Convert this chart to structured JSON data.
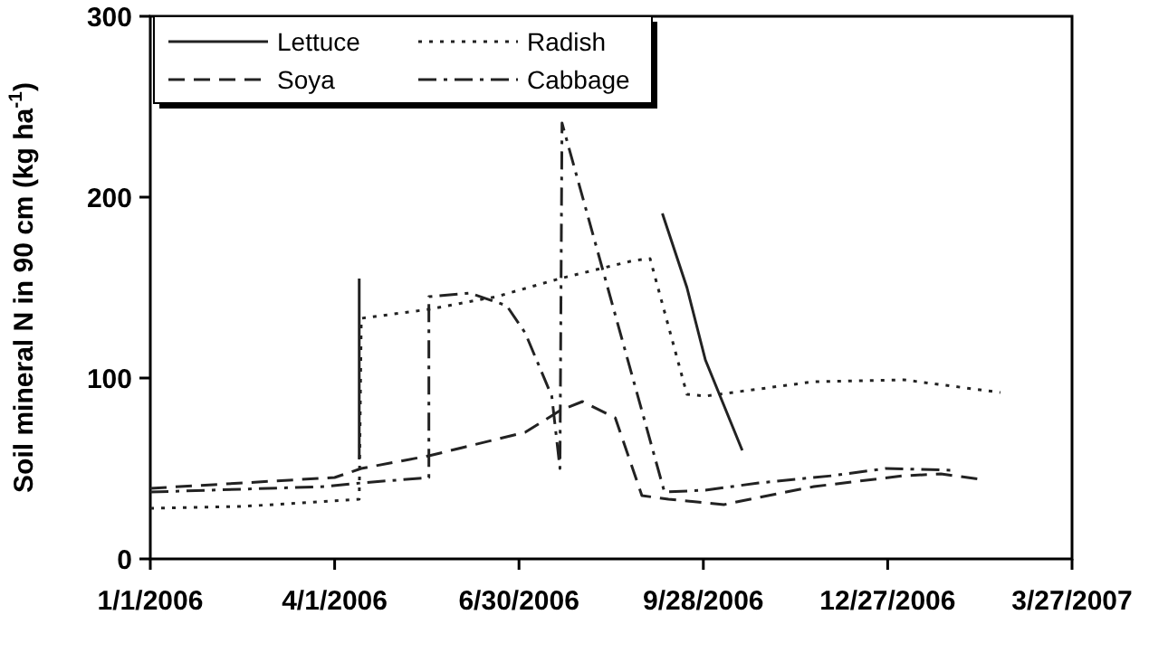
{
  "chart_data": {
    "type": "line",
    "ylabel": "Soil mineral N in 90 cm (kg ha$^{-1}$)",
    "xlim": [
      "2006-01-01",
      "2007-03-27"
    ],
    "ylim": [
      0,
      300
    ],
    "xticks": [
      {
        "value": "2006-01-01",
        "label": "1/1/2006"
      },
      {
        "value": "2006-04-01",
        "label": "4/1/2006"
      },
      {
        "value": "2006-06-30",
        "label": "6/30/2006"
      },
      {
        "value": "2006-09-28",
        "label": "9/28/2006"
      },
      {
        "value": "2006-12-27",
        "label": "12/27/2006"
      },
      {
        "value": "2007-03-27",
        "label": "3/27/2007"
      }
    ],
    "yticks": [
      0,
      100,
      200,
      300
    ],
    "legend": "top left",
    "grid": false,
    "marker": "none",
    "series": [
      {
        "name": "Lettuce",
        "color": "#222222",
        "line_style": "solid",
        "x": [
          "2006-04-13",
          "2006-04-13",
          "2006-06-01",
          "2006-09-08",
          "2006-09-20",
          "2006-09-29",
          "2006-10-08",
          "2006-10-17"
        ],
        "values": [
          55,
          155,
          null,
          191,
          150,
          110,
          85,
          60
        ]
      },
      {
        "name": "Radish",
        "color": "#222222",
        "line_style": "dotted",
        "x": [
          "2006-01-01",
          "2006-02-15",
          "2006-04-13",
          "2006-04-14",
          "2006-05-17",
          "2006-06-19",
          "2006-07-20",
          "2006-08-25",
          "2006-09-02",
          "2006-09-20",
          "2006-09-29",
          "2006-11-21",
          "2007-01-04",
          "2007-02-20"
        ],
        "values": [
          28,
          29,
          33,
          133,
          138,
          145,
          155,
          165,
          166,
          91,
          90,
          98,
          99,
          92
        ]
      },
      {
        "name": "Soya",
        "color": "#222222",
        "line_style": "dashed",
        "x": [
          "2006-01-01",
          "2006-04-01",
          "2006-04-14",
          "2006-05-17",
          "2006-07-03",
          "2006-07-20",
          "2006-07-31",
          "2006-08-16",
          "2006-08-29",
          "2006-09-11",
          "2006-10-08",
          "2006-10-25",
          "2006-11-21",
          "2007-01-04",
          "2007-01-22",
          "2007-02-10"
        ],
        "values": [
          39,
          45,
          50,
          57,
          70,
          82,
          87,
          78,
          35,
          33,
          30,
          34,
          40,
          46,
          47,
          44
        ]
      },
      {
        "name": "Cabbage",
        "color": "#222222",
        "line_style": "dashdot",
        "x": [
          "2006-01-01",
          "2006-03-27",
          "2006-04-14",
          "2006-05-17",
          "2006-05-17",
          "2006-06-06",
          "2006-06-24",
          "2006-07-03",
          "2006-07-16",
          "2006-07-20",
          "2006-07-21",
          "2006-09-09",
          "2006-09-29",
          "2006-10-25",
          "2006-11-30",
          "2006-12-26",
          "2007-01-28"
        ],
        "values": [
          37,
          40,
          42,
          45,
          145,
          147,
          140,
          125,
          90,
          50,
          241,
          37,
          38,
          42,
          46,
          50,
          49
        ]
      }
    ]
  }
}
